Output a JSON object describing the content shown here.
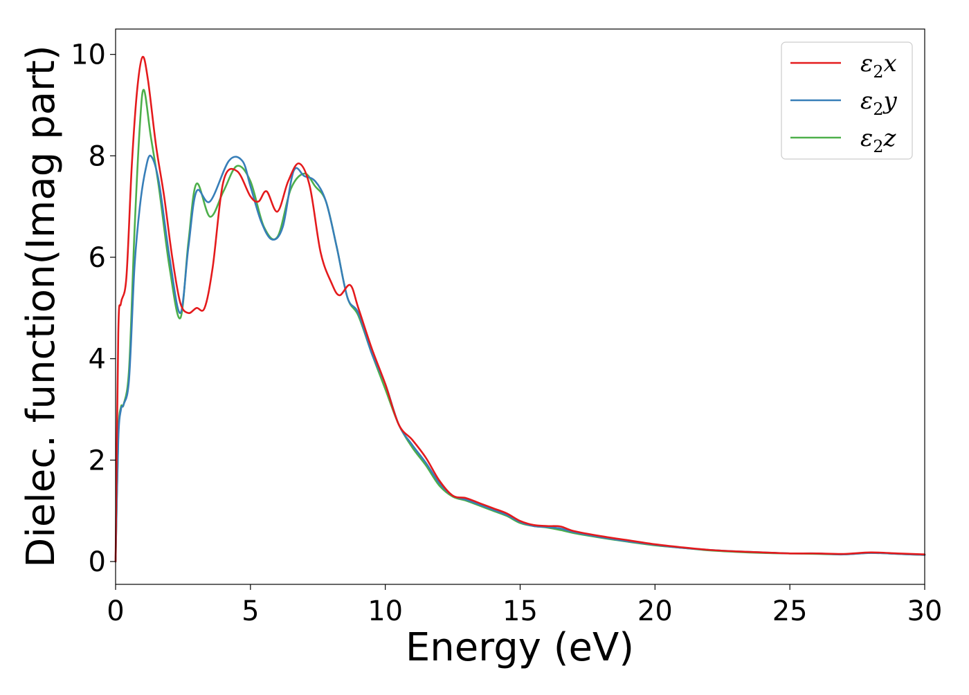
{
  "chart_data": {
    "type": "line",
    "xlabel": "Energy (eV)",
    "ylabel": "Dielec. function(Imag part)",
    "xlim": [
      0,
      30
    ],
    "ylim": [
      -0.45,
      10.5
    ],
    "xticks": [
      0,
      5,
      10,
      15,
      20,
      25,
      30
    ],
    "yticks": [
      0,
      2,
      4,
      6,
      8,
      10
    ],
    "grid": false,
    "legend_position": "top-right",
    "series": [
      {
        "name": "ε₂x",
        "legend_base": "ε",
        "legend_sub": "2",
        "legend_suffix": "x",
        "color": "#e41a1c",
        "x": [
          0,
          0.1,
          0.2,
          0.4,
          0.6,
          0.8,
          1.0,
          1.2,
          1.5,
          1.8,
          2.1,
          2.4,
          2.7,
          3.0,
          3.3,
          3.6,
          4.0,
          4.5,
          5.0,
          5.3,
          5.6,
          6.0,
          6.4,
          6.8,
          7.2,
          7.6,
          8.0,
          8.3,
          8.7,
          9.0,
          9.5,
          10.0,
          10.5,
          11.0,
          11.5,
          12.0,
          12.5,
          13.0,
          13.5,
          14.0,
          14.5,
          15.0,
          15.5,
          16.0,
          16.5,
          17.0,
          18.0,
          19.0,
          20.0,
          21.0,
          22.0,
          23.0,
          24.0,
          25.0,
          26.0,
          27.0,
          28.0,
          29.0,
          30.0
        ],
        "y": [
          0.0,
          4.5,
          5.1,
          5.6,
          7.8,
          9.3,
          9.95,
          9.5,
          8.2,
          7.2,
          6.0,
          5.1,
          4.9,
          5.0,
          5.0,
          5.8,
          7.5,
          7.7,
          7.2,
          7.1,
          7.3,
          6.9,
          7.5,
          7.85,
          7.4,
          6.1,
          5.5,
          5.25,
          5.45,
          5.0,
          4.2,
          3.5,
          2.7,
          2.4,
          2.05,
          1.6,
          1.3,
          1.25,
          1.15,
          1.05,
          0.95,
          0.8,
          0.72,
          0.7,
          0.69,
          0.6,
          0.5,
          0.42,
          0.34,
          0.28,
          0.23,
          0.2,
          0.18,
          0.16,
          0.16,
          0.15,
          0.18,
          0.16,
          0.14
        ]
      },
      {
        "name": "ε₂y",
        "legend_base": "ε",
        "legend_sub": "2",
        "legend_suffix": "y",
        "color": "#377eb8",
        "x": [
          0,
          0.1,
          0.2,
          0.3,
          0.5,
          0.7,
          0.9,
          1.1,
          1.3,
          1.6,
          2.0,
          2.4,
          2.7,
          3.0,
          3.5,
          4.2,
          4.7,
          5.0,
          5.4,
          5.8,
          6.2,
          6.6,
          7.0,
          7.4,
          7.8,
          8.2,
          8.6,
          9.0,
          9.5,
          10.0,
          10.5,
          11.0,
          11.5,
          12.0,
          12.5,
          13.0,
          13.5,
          14.0,
          14.5,
          15.0,
          15.5,
          16.0,
          16.5,
          17.0,
          18.0,
          19.0,
          20.0,
          21.0,
          22.0,
          23.0,
          24.0,
          25.0,
          26.0,
          27.0,
          28.0,
          29.0,
          30.0
        ],
        "y": [
          0.0,
          2.4,
          3.0,
          3.1,
          3.6,
          5.8,
          7.0,
          7.7,
          8.0,
          7.5,
          6.0,
          4.9,
          6.2,
          7.3,
          7.1,
          7.9,
          7.9,
          7.4,
          6.7,
          6.35,
          6.6,
          7.7,
          7.6,
          7.5,
          7.1,
          6.2,
          5.2,
          4.9,
          4.1,
          3.5,
          2.7,
          2.3,
          1.95,
          1.55,
          1.3,
          1.22,
          1.12,
          1.02,
          0.92,
          0.78,
          0.7,
          0.68,
          0.65,
          0.58,
          0.48,
          0.4,
          0.33,
          0.27,
          0.23,
          0.2,
          0.18,
          0.16,
          0.16,
          0.14,
          0.17,
          0.15,
          0.13
        ]
      },
      {
        "name": "ε₂z",
        "legend_base": "ε",
        "legend_sub": "2",
        "legend_suffix": "z",
        "color": "#4daf4a",
        "x": [
          0,
          0.1,
          0.2,
          0.3,
          0.5,
          0.7,
          0.9,
          1.05,
          1.3,
          1.6,
          2.0,
          2.4,
          2.7,
          3.0,
          3.5,
          4.0,
          4.5,
          5.0,
          5.5,
          6.0,
          6.5,
          7.0,
          7.4,
          7.8,
          8.2,
          8.6,
          9.0,
          9.5,
          10.0,
          10.5,
          11.0,
          11.5,
          12.0,
          12.5,
          13.0,
          13.5,
          14.0,
          14.5,
          15.0,
          15.5,
          16.0,
          16.5,
          17.0,
          18.0,
          19.0,
          20.0,
          21.0,
          22.0,
          23.0,
          24.0,
          25.0,
          26.0,
          27.0,
          28.0,
          29.0,
          30.0
        ],
        "y": [
          0.0,
          2.5,
          3.05,
          3.1,
          3.8,
          6.5,
          8.6,
          9.3,
          8.4,
          7.4,
          5.8,
          4.8,
          6.3,
          7.45,
          6.8,
          7.3,
          7.8,
          7.5,
          6.6,
          6.4,
          7.35,
          7.65,
          7.4,
          7.1,
          6.2,
          5.2,
          4.85,
          4.1,
          3.4,
          2.7,
          2.25,
          1.9,
          1.5,
          1.28,
          1.2,
          1.1,
          1.0,
          0.9,
          0.76,
          0.7,
          0.67,
          0.62,
          0.56,
          0.47,
          0.39,
          0.32,
          0.27,
          0.22,
          0.19,
          0.17,
          0.16,
          0.15,
          0.14,
          0.17,
          0.15,
          0.13
        ]
      }
    ]
  }
}
